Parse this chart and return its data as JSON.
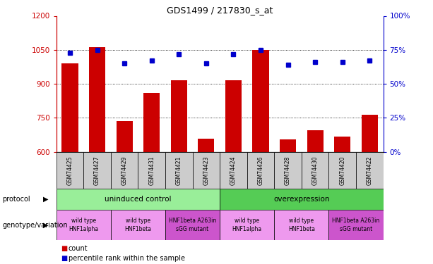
{
  "title": "GDS1499 / 217830_s_at",
  "samples": [
    "GSM74425",
    "GSM74427",
    "GSM74429",
    "GSM74431",
    "GSM74421",
    "GSM74423",
    "GSM74424",
    "GSM74426",
    "GSM74428",
    "GSM74430",
    "GSM74420",
    "GSM74422"
  ],
  "counts": [
    990,
    1063,
    735,
    860,
    916,
    658,
    916,
    1050,
    655,
    695,
    668,
    765
  ],
  "percentile": [
    73,
    75,
    65,
    67,
    72,
    65,
    72,
    75,
    64,
    66,
    66,
    67
  ],
  "ylim_left": [
    600,
    1200
  ],
  "ylim_right": [
    0,
    100
  ],
  "yticks_left": [
    600,
    750,
    900,
    1050,
    1200
  ],
  "yticks_right": [
    0,
    25,
    50,
    75,
    100
  ],
  "bar_color": "#cc0000",
  "dot_color": "#0000cc",
  "protocol_groups": [
    {
      "label": "uninduced control",
      "start": 0,
      "end": 6,
      "color": "#99ee99"
    },
    {
      "label": "overexpression",
      "start": 6,
      "end": 12,
      "color": "#55cc55"
    }
  ],
  "genotype_groups": [
    {
      "label": "wild type\nHNF1alpha",
      "start": 0,
      "end": 2,
      "color": "#ee99ee"
    },
    {
      "label": "wild type\nHNF1beta",
      "start": 2,
      "end": 4,
      "color": "#ee99ee"
    },
    {
      "label": "HNF1beta A263in\nsGG mutant",
      "start": 4,
      "end": 6,
      "color": "#cc55cc"
    },
    {
      "label": "wild type\nHNF1alpha",
      "start": 6,
      "end": 8,
      "color": "#ee99ee"
    },
    {
      "label": "wild type\nHNF1beta",
      "start": 8,
      "end": 10,
      "color": "#ee99ee"
    },
    {
      "label": "HNF1beta A263in\nsGG mutant",
      "start": 10,
      "end": 12,
      "color": "#cc55cc"
    }
  ],
  "protocol_label": "protocol",
  "genotype_label": "genotype/variation",
  "legend_count": "count",
  "legend_percentile": "percentile rank within the sample",
  "left_axis_color": "#cc0000",
  "right_axis_color": "#0000cc",
  "sample_bg": "#cccccc",
  "grid_dotted_ticks": [
    750,
    900,
    1050
  ]
}
